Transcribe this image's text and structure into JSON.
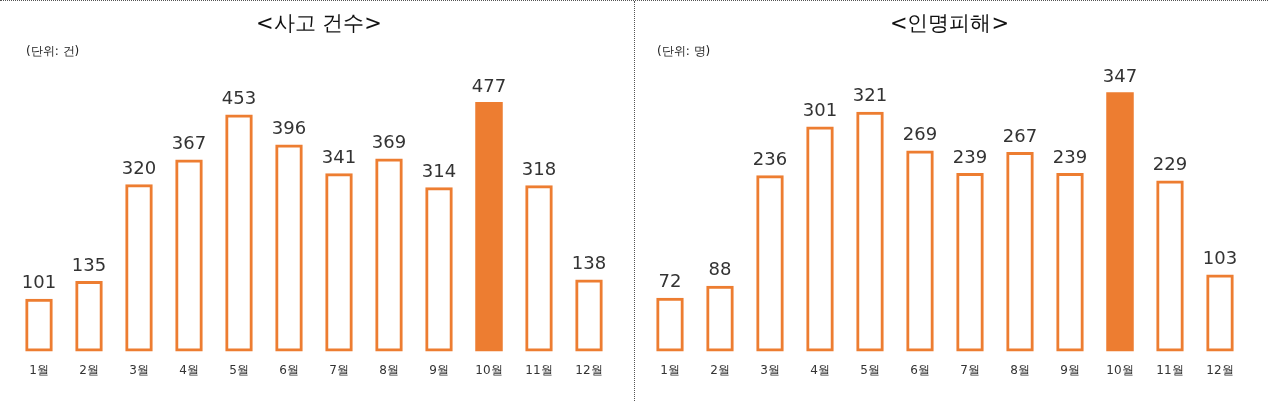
{
  "chart_data": [
    {
      "type": "bar",
      "title": "<사고 건수>",
      "subtitle": "(단위: 건)",
      "categories": [
        "1월",
        "2월",
        "3월",
        "4월",
        "5월",
        "6월",
        "7월",
        "8월",
        "9월",
        "10월",
        "11월",
        "12월"
      ],
      "series": [
        {
          "color": "#ed7d31",
          "values": [
            101,
            135,
            320,
            367,
            453,
            396,
            341,
            369,
            314,
            null,
            318,
            138
          ]
        },
        {
          "color": "#ed7d31",
          "values": [
            null,
            null,
            null,
            null,
            null,
            null,
            null,
            null,
            null,
            477,
            null,
            null
          ]
        }
      ],
      "data_labels": true,
      "grid": false,
      "legend": false,
      "tick_labels": "x"
    },
    {
      "type": "bar",
      "title": "<인명피해>",
      "subtitle": "(단위: 명)",
      "categories": [
        "1월",
        "2월",
        "3월",
        "4월",
        "5월",
        "6월",
        "7월",
        "8월",
        "9월",
        "10월",
        "11월",
        "12월"
      ],
      "series": [
        {
          "color": "#ed7d31",
          "values": [
            72,
            88,
            236,
            301,
            321,
            269,
            239,
            267,
            239,
            null,
            229,
            103
          ]
        },
        {
          "color": "#ed7d31",
          "values": [
            null,
            null,
            null,
            null,
            null,
            null,
            null,
            null,
            null,
            347,
            null,
            null
          ]
        }
      ],
      "data_labels": true,
      "grid": false,
      "legend": false,
      "tick_labels": "x"
    }
  ]
}
